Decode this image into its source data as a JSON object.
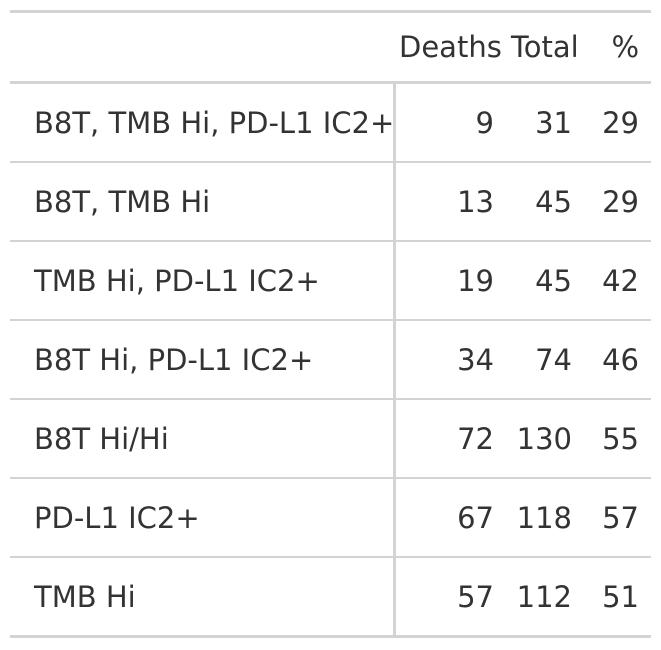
{
  "table": {
    "columns": [
      "",
      "Deaths",
      "Total",
      "%"
    ],
    "rows": [
      {
        "label": "B8T, TMB Hi, PD-L1 IC2+",
        "deaths": "9",
        "total": "31",
        "pct": "29"
      },
      {
        "label": "B8T, TMB Hi",
        "deaths": "13",
        "total": "45",
        "pct": "29"
      },
      {
        "label": "TMB Hi, PD-L1 IC2+",
        "deaths": "19",
        "total": "45",
        "pct": "42"
      },
      {
        "label": "B8T Hi, PD-L1 IC2+",
        "deaths": "34",
        "total": "74",
        "pct": "46"
      },
      {
        "label": "B8T Hi/Hi",
        "deaths": "72",
        "total": "130",
        "pct": "55"
      },
      {
        "label": "PD-L1 IC2+",
        "deaths": "67",
        "total": "118",
        "pct": "57"
      },
      {
        "label": "TMB Hi",
        "deaths": "57",
        "total": "112",
        "pct": "51"
      }
    ]
  }
}
